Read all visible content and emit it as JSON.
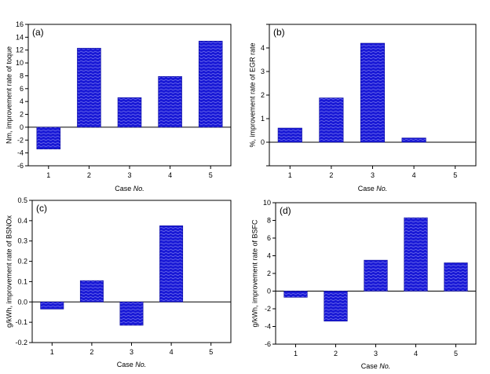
{
  "figure": {
    "bar_color": "#1515d8",
    "bar_stroke": "#0a0a9a"
  },
  "chart_data": [
    {
      "type": "bar",
      "panel_label": "(a)",
      "categories": [
        "1",
        "2",
        "3",
        "4",
        "5"
      ],
      "values": [
        -3.4,
        12.3,
        4.6,
        7.9,
        13.4
      ],
      "xlabel_prefix": "Case ",
      "xlabel_italic": "No.",
      "ylabel": "Nm, improvement rate of toque",
      "ylim": [
        -6,
        16
      ],
      "yticks": [
        -6,
        -4,
        -2,
        0,
        2,
        4,
        6,
        8,
        10,
        12,
        14,
        16
      ],
      "ytick_labels": [
        "-6",
        "-4",
        "-2",
        "0",
        "2",
        "4",
        "6",
        "8",
        "10",
        "12",
        "14",
        "16"
      ]
    },
    {
      "type": "bar",
      "panel_label": "(b)",
      "categories": [
        "1",
        "2",
        "3",
        "4",
        "5"
      ],
      "values": [
        0.6,
        1.88,
        4.2,
        0.18,
        null
      ],
      "xlabel_prefix": "Case ",
      "xlabel_italic": "No.",
      "ylabel": "%, improvement rate of EGR rate",
      "ylim": [
        -1,
        5
      ],
      "yticks": [
        -1,
        0,
        1,
        2,
        3,
        4,
        5
      ],
      "ytick_labels": [
        "",
        "0",
        "1",
        "2",
        "3",
        "4",
        ""
      ]
    },
    {
      "type": "bar",
      "panel_label": "(c)",
      "categories": [
        "1",
        "2",
        "3",
        "4",
        "5"
      ],
      "values": [
        -0.035,
        0.105,
        -0.115,
        0.375,
        null
      ],
      "xlabel_prefix": "Case ",
      "xlabel_italic": "No.",
      "ylabel": "g/kWh, improvement rate of BSNOx",
      "ylim": [
        -0.2,
        0.5
      ],
      "yticks": [
        -0.2,
        -0.1,
        0.0,
        0.1,
        0.2,
        0.3,
        0.4,
        0.5
      ],
      "ytick_labels": [
        "-0.2",
        "-0.1",
        "0.0",
        "0.1",
        "0.2",
        "0.3",
        "0.4",
        "0.5"
      ]
    },
    {
      "type": "bar",
      "panel_label": "(d)",
      "categories": [
        "1",
        "2",
        "3",
        "4",
        "5"
      ],
      "values": [
        -0.7,
        -3.4,
        3.5,
        8.3,
        3.2
      ],
      "xlabel_prefix": "Case ",
      "xlabel_italic": "No.",
      "ylabel": "g/kWh, improvement rate of BSFC",
      "ylim": [
        -6,
        10
      ],
      "yticks": [
        -6,
        -4,
        -2,
        0,
        2,
        4,
        6,
        8,
        10
      ],
      "ytick_labels": [
        "-6",
        "-4",
        "-2",
        "0",
        "2",
        "4",
        "6",
        "8",
        "10"
      ]
    }
  ]
}
